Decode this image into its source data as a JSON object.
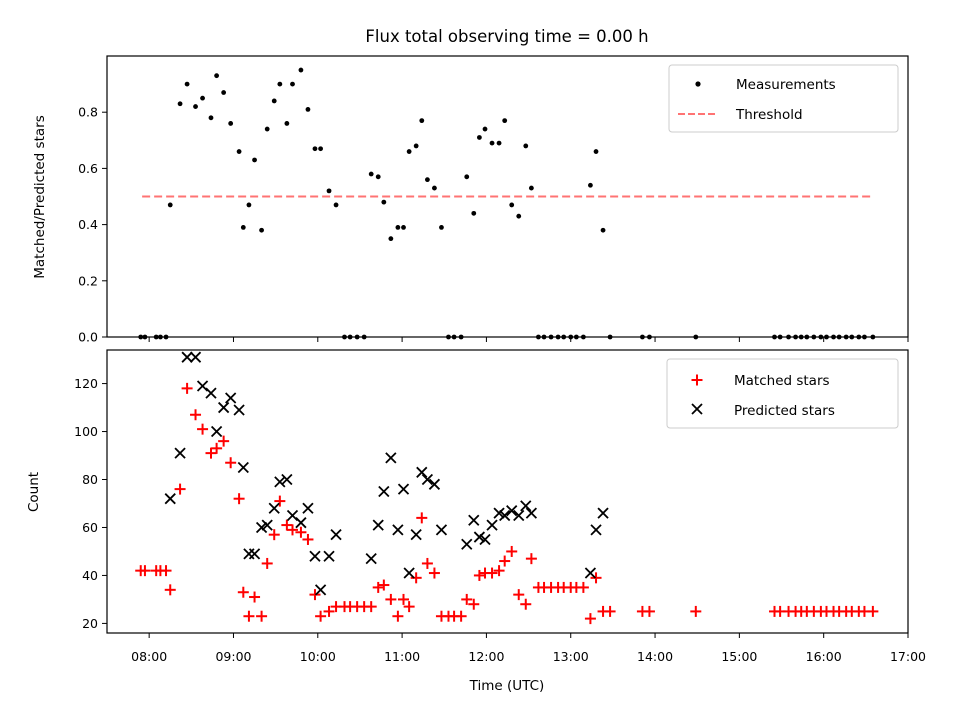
{
  "figure": {
    "title": "Flux total observing time = 0.00 h"
  },
  "chart_data": [
    {
      "type": "scatter",
      "name": "ratio",
      "ylabel": "Matched/Predicted stars",
      "xlabel": "",
      "xlim": [
        "07:30",
        "17:00"
      ],
      "ylim": [
        0,
        1.0
      ],
      "yticks": [
        0.0,
        0.2,
        0.4,
        0.6,
        0.8
      ],
      "ytick_labels": [
        "0.0",
        "0.2",
        "0.4",
        "0.6",
        "0.8"
      ],
      "grid": false,
      "legend": "top-right",
      "series": [
        {
          "name": "Measurements",
          "marker": "dot",
          "color": "#000000",
          "points": [
            [
              "07:54",
              0
            ],
            [
              "07:57",
              0
            ],
            [
              "08:05",
              0
            ],
            [
              "08:08",
              0
            ],
            [
              "08:12",
              0
            ],
            [
              "08:15",
              0.47
            ],
            [
              "08:22",
              0.83
            ],
            [
              "08:27",
              0.9
            ],
            [
              "08:33",
              0.82
            ],
            [
              "08:38",
              0.85
            ],
            [
              "08:44",
              0.78
            ],
            [
              "08:48",
              0.93
            ],
            [
              "08:53",
              0.87
            ],
            [
              "08:58",
              0.76
            ],
            [
              "09:04",
              0.66
            ],
            [
              "09:07",
              0.39
            ],
            [
              "09:11",
              0.47
            ],
            [
              "09:15",
              0.63
            ],
            [
              "09:20",
              0.38
            ],
            [
              "09:24",
              0.74
            ],
            [
              "09:29",
              0.84
            ],
            [
              "09:33",
              0.9
            ],
            [
              "09:38",
              0.76
            ],
            [
              "09:42",
              0.9
            ],
            [
              "09:48",
              0.95
            ],
            [
              "09:53",
              0.81
            ],
            [
              "09:58",
              0.67
            ],
            [
              "10:02",
              0.67
            ],
            [
              "10:08",
              0.52
            ],
            [
              "10:13",
              0.47
            ],
            [
              "10:19",
              0
            ],
            [
              "10:23",
              0
            ],
            [
              "10:28",
              0
            ],
            [
              "10:33",
              0
            ],
            [
              "10:38",
              0.58
            ],
            [
              "10:43",
              0.57
            ],
            [
              "10:47",
              0.48
            ],
            [
              "10:52",
              0.35
            ],
            [
              "10:57",
              0.39
            ],
            [
              "11:01",
              0.39
            ],
            [
              "11:05",
              0.66
            ],
            [
              "11:10",
              0.68
            ],
            [
              "11:14",
              0.77
            ],
            [
              "11:18",
              0.56
            ],
            [
              "11:23",
              0.53
            ],
            [
              "11:28",
              0.39
            ],
            [
              "11:33",
              0
            ],
            [
              "11:37",
              0
            ],
            [
              "11:42",
              0
            ],
            [
              "11:46",
              0.57
            ],
            [
              "11:51",
              0.44
            ],
            [
              "11:55",
              0.71
            ],
            [
              "11:59",
              0.74
            ],
            [
              "12:04",
              0.69
            ],
            [
              "12:09",
              0.69
            ],
            [
              "12:13",
              0.77
            ],
            [
              "12:18",
              0.47
            ],
            [
              "12:23",
              0.43
            ],
            [
              "12:28",
              0.68
            ],
            [
              "12:32",
              0.53
            ],
            [
              "12:37",
              0
            ],
            [
              "12:41",
              0
            ],
            [
              "12:46",
              0
            ],
            [
              "12:51",
              0
            ],
            [
              "12:55",
              0
            ],
            [
              "13:00",
              0
            ],
            [
              "13:04",
              0
            ],
            [
              "13:09",
              0
            ],
            [
              "13:14",
              0.54
            ],
            [
              "13:18",
              0.66
            ],
            [
              "13:23",
              0.38
            ],
            [
              "13:28",
              0
            ],
            [
              "13:51",
              0
            ],
            [
              "13:56",
              0
            ],
            [
              "14:29",
              0
            ],
            [
              "15:25",
              0
            ],
            [
              "15:29",
              0
            ],
            [
              "15:35",
              0
            ],
            [
              "15:40",
              0
            ],
            [
              "15:44",
              0
            ],
            [
              "15:48",
              0
            ],
            [
              "15:53",
              0
            ],
            [
              "15:58",
              0
            ],
            [
              "16:02",
              0
            ],
            [
              "16:07",
              0
            ],
            [
              "16:11",
              0
            ],
            [
              "16:16",
              0
            ],
            [
              "16:20",
              0
            ],
            [
              "16:25",
              0
            ],
            [
              "16:29",
              0
            ],
            [
              "16:35",
              0
            ]
          ]
        },
        {
          "name": "Threshold",
          "marker": "dashed-line",
          "color": "#ff7373",
          "points": [
            [
              "07:55",
              0.5
            ],
            [
              "16:35",
              0.5
            ]
          ]
        }
      ]
    },
    {
      "type": "scatter",
      "name": "counts",
      "ylabel": "Count",
      "xlabel": "Time (UTC)",
      "xlim": [
        "07:30",
        "17:00"
      ],
      "xticks": [
        "08:00",
        "09:00",
        "10:00",
        "11:00",
        "12:00",
        "13:00",
        "14:00",
        "15:00",
        "16:00",
        "17:00"
      ],
      "ylim": [
        16,
        134
      ],
      "yticks": [
        20,
        40,
        60,
        80,
        100,
        120
      ],
      "grid": false,
      "legend": "top-right",
      "series": [
        {
          "name": "Matched stars",
          "marker": "plus",
          "color": "#ff0000",
          "points": [
            [
              "07:54",
              42
            ],
            [
              "07:57",
              42
            ],
            [
              "08:05",
              42
            ],
            [
              "08:08",
              42
            ],
            [
              "08:12",
              42
            ],
            [
              "08:15",
              34
            ],
            [
              "08:22",
              76
            ],
            [
              "08:27",
              118
            ],
            [
              "08:33",
              107
            ],
            [
              "08:38",
              101
            ],
            [
              "08:44",
              91
            ],
            [
              "08:48",
              93
            ],
            [
              "08:53",
              96
            ],
            [
              "08:58",
              87
            ],
            [
              "09:04",
              72
            ],
            [
              "09:07",
              33
            ],
            [
              "09:11",
              23
            ],
            [
              "09:15",
              31
            ],
            [
              "09:20",
              23
            ],
            [
              "09:24",
              45
            ],
            [
              "09:29",
              57
            ],
            [
              "09:33",
              71
            ],
            [
              "09:38",
              61
            ],
            [
              "09:42",
              59
            ],
            [
              "09:48",
              58
            ],
            [
              "09:53",
              55
            ],
            [
              "09:58",
              32
            ],
            [
              "10:02",
              23
            ],
            [
              "10:08",
              25
            ],
            [
              "10:13",
              27
            ],
            [
              "10:19",
              27
            ],
            [
              "10:23",
              27
            ],
            [
              "10:28",
              27
            ],
            [
              "10:33",
              27
            ],
            [
              "10:38",
              27
            ],
            [
              "10:43",
              35
            ],
            [
              "10:47",
              36
            ],
            [
              "10:52",
              30
            ],
            [
              "10:57",
              23
            ],
            [
              "11:01",
              30
            ],
            [
              "11:05",
              27
            ],
            [
              "11:10",
              39
            ],
            [
              "11:14",
              64
            ],
            [
              "11:18",
              45
            ],
            [
              "11:23",
              41
            ],
            [
              "11:28",
              23
            ],
            [
              "11:33",
              23
            ],
            [
              "11:37",
              23
            ],
            [
              "11:42",
              23
            ],
            [
              "11:46",
              30
            ],
            [
              "11:51",
              28
            ],
            [
              "11:55",
              40
            ],
            [
              "11:59",
              41
            ],
            [
              "12:04",
              41
            ],
            [
              "12:09",
              42
            ],
            [
              "12:13",
              46
            ],
            [
              "12:18",
              50
            ],
            [
              "12:23",
              32
            ],
            [
              "12:28",
              28
            ],
            [
              "12:32",
              47
            ],
            [
              "12:37",
              35
            ],
            [
              "12:41",
              35
            ],
            [
              "12:46",
              35
            ],
            [
              "12:51",
              35
            ],
            [
              "12:55",
              35
            ],
            [
              "13:00",
              35
            ],
            [
              "13:04",
              35
            ],
            [
              "13:09",
              35
            ],
            [
              "13:14",
              22
            ],
            [
              "13:18",
              39
            ],
            [
              "13:23",
              25
            ],
            [
              "13:28",
              25
            ],
            [
              "13:51",
              25
            ],
            [
              "13:56",
              25
            ],
            [
              "14:29",
              25
            ],
            [
              "15:25",
              25
            ],
            [
              "15:29",
              25
            ],
            [
              "15:35",
              25
            ],
            [
              "15:40",
              25
            ],
            [
              "15:44",
              25
            ],
            [
              "15:48",
              25
            ],
            [
              "15:53",
              25
            ],
            [
              "15:58",
              25
            ],
            [
              "16:02",
              25
            ],
            [
              "16:07",
              25
            ],
            [
              "16:11",
              25
            ],
            [
              "16:16",
              25
            ],
            [
              "16:20",
              25
            ],
            [
              "16:25",
              25
            ],
            [
              "16:29",
              25
            ],
            [
              "16:35",
              25
            ]
          ]
        },
        {
          "name": "Predicted stars",
          "marker": "x",
          "color": "#000000",
          "points": [
            [
              "08:15",
              72
            ],
            [
              "08:22",
              91
            ],
            [
              "08:27",
              131
            ],
            [
              "08:33",
              131
            ],
            [
              "08:38",
              119
            ],
            [
              "08:44",
              116
            ],
            [
              "08:48",
              100
            ],
            [
              "08:53",
              110
            ],
            [
              "08:58",
              114
            ],
            [
              "09:04",
              109
            ],
            [
              "09:07",
              85
            ],
            [
              "09:11",
              49
            ],
            [
              "09:15",
              49
            ],
            [
              "09:20",
              60
            ],
            [
              "09:24",
              61
            ],
            [
              "09:29",
              68
            ],
            [
              "09:33",
              79
            ],
            [
              "09:38",
              80
            ],
            [
              "09:42",
              65
            ],
            [
              "09:48",
              62
            ],
            [
              "09:53",
              68
            ],
            [
              "09:58",
              48
            ],
            [
              "10:02",
              34
            ],
            [
              "10:08",
              48
            ],
            [
              "10:13",
              57
            ],
            [
              "10:38",
              47
            ],
            [
              "10:43",
              61
            ],
            [
              "10:47",
              75
            ],
            [
              "10:52",
              89
            ],
            [
              "10:57",
              59
            ],
            [
              "11:01",
              76
            ],
            [
              "11:05",
              41
            ],
            [
              "11:10",
              57
            ],
            [
              "11:14",
              83
            ],
            [
              "11:18",
              80
            ],
            [
              "11:23",
              78
            ],
            [
              "11:28",
              59
            ],
            [
              "11:46",
              53
            ],
            [
              "11:51",
              63
            ],
            [
              "11:55",
              56
            ],
            [
              "11:59",
              55
            ],
            [
              "12:04",
              61
            ],
            [
              "12:09",
              66
            ],
            [
              "12:13",
              65
            ],
            [
              "12:18",
              67
            ],
            [
              "12:23",
              65
            ],
            [
              "12:28",
              69
            ],
            [
              "12:32",
              66
            ],
            [
              "13:14",
              41
            ],
            [
              "13:18",
              59
            ],
            [
              "13:23",
              66
            ]
          ]
        }
      ]
    }
  ]
}
